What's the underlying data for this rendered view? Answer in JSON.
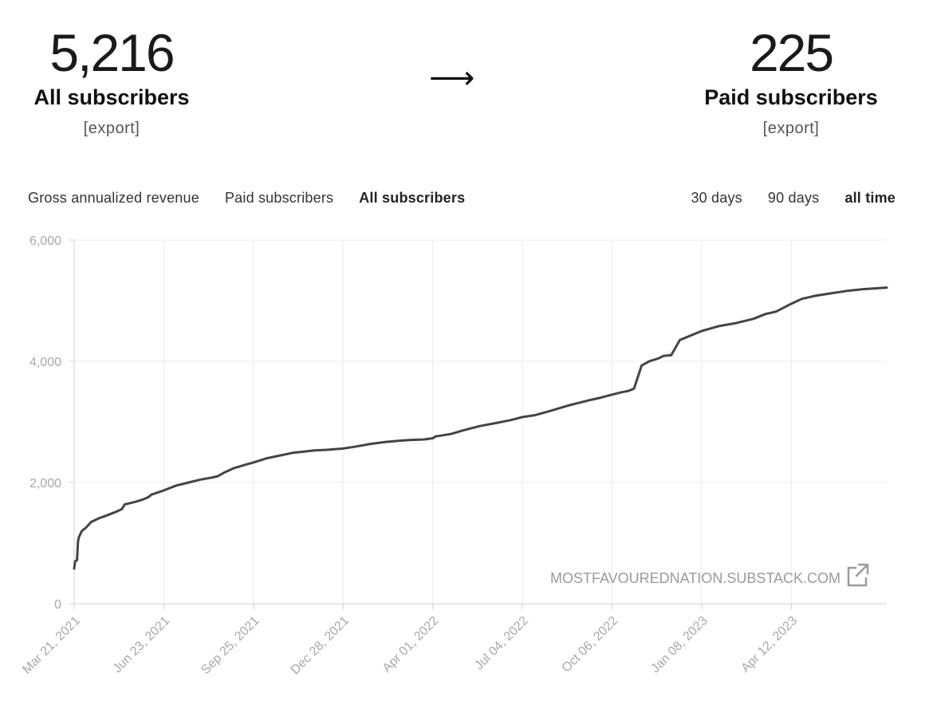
{
  "stats": {
    "all": {
      "value": "5,216",
      "label": "All subscribers",
      "export": "[export]"
    },
    "paid": {
      "value": "225",
      "label": "Paid subscribers",
      "export": "[export]"
    },
    "arrow": "⟶"
  },
  "tabs": [
    {
      "label": "Gross annualized revenue",
      "active": false
    },
    {
      "label": "Paid subscribers",
      "active": false
    },
    {
      "label": "All subscribers",
      "active": true
    }
  ],
  "ranges": [
    {
      "label": "30 days",
      "active": false
    },
    {
      "label": "90 days",
      "active": false
    },
    {
      "label": "all time",
      "active": true
    }
  ],
  "watermark": "MOSTFAVOUREDNATION.SUBSTACK.COM",
  "icons": {
    "external_link": "external-link-icon"
  },
  "colors": {
    "line": "#444444",
    "grid": "#ececec",
    "axis": "#d0d0d0",
    "tick_text": "#a8a8a8"
  },
  "chart_data": {
    "type": "line",
    "title": "",
    "xlabel": "",
    "ylabel": "",
    "ylim": [
      0,
      6000
    ],
    "xlim": [
      "2021-03-21",
      "2023-07-21"
    ],
    "grid": true,
    "yticks": [
      0,
      2000,
      4000,
      6000
    ],
    "ytick_labels": [
      "0",
      "2,000",
      "4,000",
      "6,000"
    ],
    "xticks": [
      "2021-03-21",
      "2021-06-23",
      "2021-09-25",
      "2021-12-28",
      "2022-04-01",
      "2022-07-04",
      "2022-10-06",
      "2023-01-08",
      "2023-04-12"
    ],
    "xtick_labels": [
      "Mar 21, 2021",
      "Jun 23, 2021",
      "Sep 25, 2021",
      "Dec 28, 2021",
      "Apr 01, 2022",
      "Jul 04, 2022",
      "Oct 06, 2022",
      "Jan 08, 2023",
      "Apr 12, 2023"
    ],
    "series": [
      {
        "x": [
          "2021-03-21",
          "2021-03-22",
          "2021-03-24",
          "2021-03-25",
          "2021-03-26",
          "2021-03-29",
          "2021-04-02",
          "2021-04-08",
          "2021-04-12",
          "2021-04-16",
          "2021-04-23",
          "2021-05-03",
          "2021-05-10",
          "2021-05-13",
          "2021-05-24",
          "2021-06-01",
          "2021-06-07",
          "2021-06-10",
          "2021-06-23",
          "2021-07-06",
          "2021-07-19",
          "2021-08-01",
          "2021-08-12",
          "2021-08-18",
          "2021-08-26",
          "2021-09-05",
          "2021-09-18",
          "2021-09-25",
          "2021-10-09",
          "2021-10-21",
          "2021-11-05",
          "2021-11-17",
          "2021-11-28",
          "2021-12-11",
          "2021-12-28",
          "2022-01-09",
          "2022-01-27",
          "2022-02-11",
          "2022-02-25",
          "2022-03-07",
          "2022-03-23",
          "2022-04-01",
          "2022-04-04",
          "2022-04-20",
          "2022-05-03",
          "2022-05-20",
          "2022-06-06",
          "2022-06-22",
          "2022-07-04",
          "2022-07-17",
          "2022-08-02",
          "2022-08-21",
          "2022-09-10",
          "2022-09-24",
          "2022-10-06",
          "2022-10-16",
          "2022-10-23",
          "2022-10-29",
          "2022-11-06",
          "2022-11-14",
          "2022-11-24",
          "2022-11-29",
          "2022-12-07",
          "2022-12-16",
          "2023-01-08",
          "2023-01-26",
          "2023-02-13",
          "2023-03-03",
          "2023-03-16",
          "2023-03-27",
          "2023-04-12",
          "2023-04-23",
          "2023-05-07",
          "2023-05-23",
          "2023-06-09",
          "2023-06-26",
          "2023-07-21"
        ],
        "y": [
          580,
          700,
          720,
          1030,
          1100,
          1200,
          1250,
          1350,
          1380,
          1410,
          1450,
          1510,
          1560,
          1640,
          1680,
          1720,
          1760,
          1800,
          1870,
          1950,
          2000,
          2050,
          2080,
          2100,
          2170,
          2240,
          2300,
          2330,
          2400,
          2440,
          2490,
          2510,
          2530,
          2540,
          2560,
          2590,
          2640,
          2670,
          2690,
          2700,
          2710,
          2730,
          2760,
          2800,
          2860,
          2930,
          2980,
          3030,
          3080,
          3110,
          3180,
          3270,
          3350,
          3400,
          3450,
          3490,
          3510,
          3550,
          3930,
          4000,
          4050,
          4090,
          4100,
          4350,
          4500,
          4580,
          4630,
          4700,
          4780,
          4820,
          4950,
          5030,
          5080,
          5120,
          5160,
          5190,
          5216
        ]
      }
    ]
  }
}
